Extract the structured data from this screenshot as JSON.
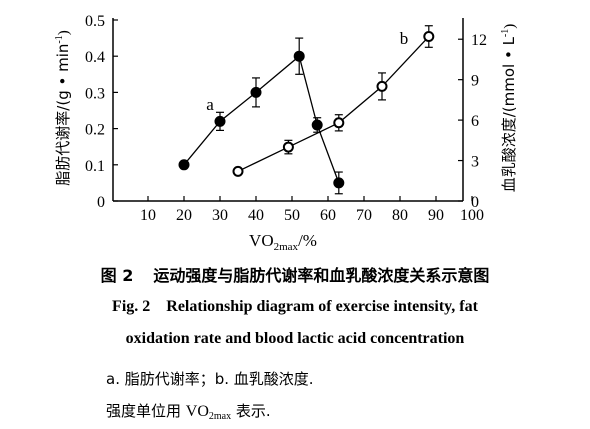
{
  "chart_data": {
    "type": "scatter",
    "title": "",
    "xlabel": "VO",
    "xlabel_sub": "2max",
    "xlabel_unit": "/%",
    "ylabel_left": "脂肪代谢率/(g • min",
    "ylabel_left_sup": "-1",
    "ylabel_right": "血乳酸浓度/(mmol • L",
    "ylabel_right_sup": "-1",
    "x_ticks": [
      "10",
      "20",
      "30",
      "40",
      "50",
      "60",
      "70",
      "80",
      "90",
      "100"
    ],
    "y_left_ticks": [
      "0",
      "0.1",
      "0.2",
      "0.3",
      "0.4",
      "0.5"
    ],
    "y_right_ticks": [
      "0",
      "3",
      "6",
      "9",
      "12"
    ],
    "xlim": [
      0,
      100
    ],
    "ylim_left": [
      0,
      0.5
    ],
    "ylim_right": [
      0,
      13.5
    ],
    "grid": false,
    "series": [
      {
        "label": "a",
        "axis": "left",
        "marker": "filled-circle",
        "points": [
          {
            "x": 20,
            "y": 0.1,
            "err": 0
          },
          {
            "x": 30,
            "y": 0.22,
            "err": 0.025
          },
          {
            "x": 40,
            "y": 0.3,
            "err": 0.04
          },
          {
            "x": 52,
            "y": 0.4,
            "err": 0.05
          },
          {
            "x": 57,
            "y": 0.21,
            "err": 0.02
          },
          {
            "x": 63,
            "y": 0.05,
            "err": 0.03
          }
        ]
      },
      {
        "label": "b",
        "axis": "right",
        "marker": "open-circle",
        "points": [
          {
            "x": 35,
            "y": 2.2,
            "err": 0
          },
          {
            "x": 49,
            "y": 4.0,
            "err": 0.5
          },
          {
            "x": 63,
            "y": 5.8,
            "err": 0.6
          },
          {
            "x": 75,
            "y": 8.5,
            "err": 1.0
          },
          {
            "x": 88,
            "y": 12.2,
            "err": 0.8
          }
        ]
      }
    ]
  },
  "caption": {
    "cn_num": "图 2",
    "cn_text": "运动强度与脂肪代谢率和血乳酸浓度关系示意图",
    "en_line1": "Fig. 2    Relationship diagram of exercise intensity, fat",
    "en_line2": "oxidation rate and blood lactic acid concentration"
  },
  "notes": {
    "line1": "a. 脂肪代谢率；b. 血乳酸浓度.",
    "line2_prefix": "强度单位用",
    "line2_vo": "VO",
    "line2_sub": "2max",
    "line2_suffix": "表示."
  }
}
